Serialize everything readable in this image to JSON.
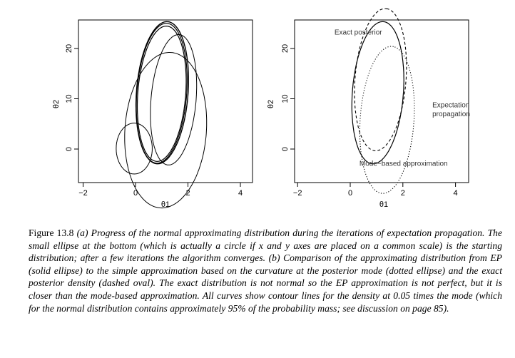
{
  "caption": {
    "label": "Figure 13.8",
    "text": "(a) Progress of the normal approximating distribution during the iterations of expectation propagation. The small ellipse at the bottom (which is actually a circle if x and y axes are placed on a common scale) is the starting distribution; after a few iterations the algorithm converges. (b) Comparison of the approximating distribution from EP (solid ellipse) to the simple approximation based on the curvature at the posterior mode (dotted ellipse) and the exact posterior density (dashed oval). The exact distribution is not normal so the EP approximation is not perfect, but it is closer than the mode-based approximation. All curves show contour lines for the density at 0.05 times the mode (which for the normal distribution contains approximately 95% of the probability mass; see discussion on page 85)."
  },
  "chart_data": [
    {
      "type": "line",
      "panel": "a",
      "xlabel": "θ1",
      "ylabel": "θ2",
      "xlim": [
        -2.5,
        4.6
      ],
      "ylim": [
        -5.8,
        26
      ],
      "xticks": [
        -2,
        0,
        2,
        4
      ],
      "yticks": [
        0,
        10,
        20
      ],
      "grid": false,
      "series": [
        {
          "kind": "ellipse",
          "style": "solid",
          "center": [
            -0.05,
            0.1
          ],
          "rx": 1.25,
          "ry": 1.1,
          "angle_deg": 0
        },
        {
          "kind": "ellipse",
          "style": "solid",
          "center": [
            1.15,
            3.75
          ],
          "rx": 3.4,
          "ry": 2.8,
          "angle_deg": 75
        },
        {
          "kind": "ellipse",
          "style": "solid",
          "center": [
            1.45,
            9.8
          ],
          "rx": 2.85,
          "ry": 1.55,
          "angle_deg": 80
        },
        {
          "kind": "ellipse",
          "style": "solid",
          "center": [
            1.0,
            11.0
          ],
          "rx": 2.95,
          "ry": 1.65,
          "angle_deg": 81
        },
        {
          "kind": "ellipse",
          "style": "solid",
          "center": [
            1.0,
            11.1
          ],
          "rx": 3.05,
          "ry": 1.72,
          "angle_deg": 81
        },
        {
          "kind": "ellipse",
          "style": "solid",
          "center": [
            1.02,
            11.2
          ],
          "rx": 3.1,
          "ry": 1.78,
          "angle_deg": 81
        }
      ]
    },
    {
      "type": "line",
      "panel": "b",
      "xlabel": "θ1",
      "ylabel": "θ2",
      "xlim": [
        -2.5,
        4.6
      ],
      "ylim": [
        -5.8,
        26
      ],
      "xticks": [
        -2,
        0,
        2,
        4
      ],
      "yticks": [
        0,
        10,
        20
      ],
      "grid": false,
      "series": [
        {
          "name": "Expectation propagation",
          "kind": "ellipse",
          "style": "solid",
          "center": [
            1.05,
            11.2
          ],
          "rx": 3.1,
          "ry": 1.75,
          "angle_deg": 81
        },
        {
          "name": "Mode-based approximation",
          "kind": "ellipse",
          "style": "dotted",
          "center": [
            1.4,
            5.8
          ],
          "rx": 3.2,
          "ry": 1.85,
          "angle_deg": 82
        },
        {
          "name": "Exact posterior",
          "kind": "ellipse",
          "style": "dashed",
          "center": [
            1.15,
            13.8
          ],
          "rx": 3.1,
          "ry": 1.75,
          "angle_deg": 81
        }
      ],
      "annotations": [
        {
          "text": "Exact posterior",
          "at": [
            -0.6,
            22.8
          ]
        },
        {
          "text": "Expectation",
          "at": [
            3.12,
            8.3
          ]
        },
        {
          "text": "propagation",
          "at": [
            3.12,
            6.5
          ]
        },
        {
          "text": "Mode−based approximation",
          "at": [
            0.35,
            -3.3
          ]
        }
      ]
    }
  ]
}
